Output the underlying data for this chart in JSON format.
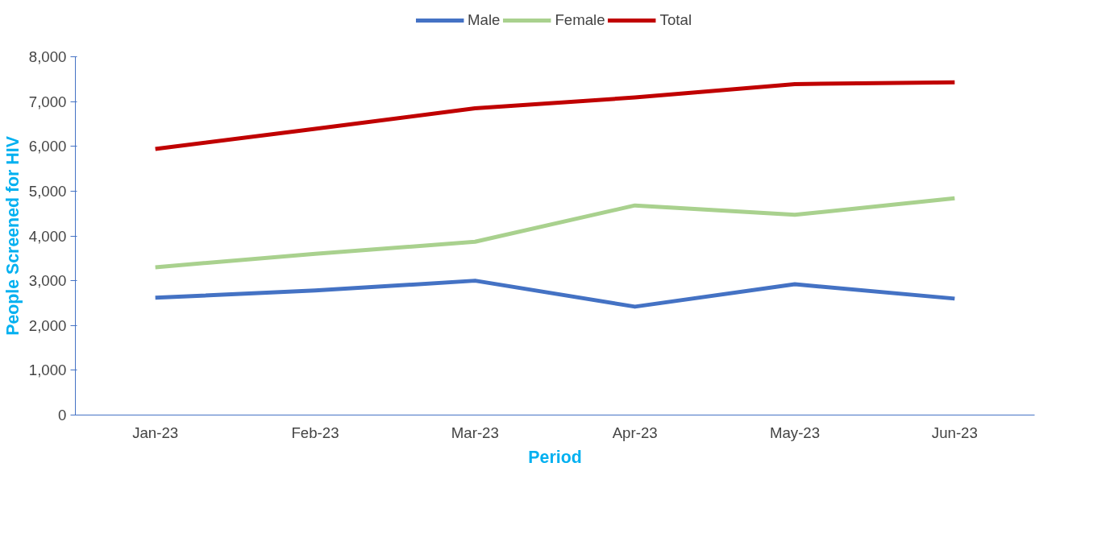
{
  "chart_data": {
    "type": "line",
    "xlabel": "Period",
    "ylabel": "People Screened for HIV",
    "categories": [
      "Jan-23",
      "Feb-23",
      "Mar-23",
      "Apr-23",
      "May-23",
      "Jun-23"
    ],
    "series": [
      {
        "name": "Male",
        "color": "#4472c4",
        "values": [
          2620,
          2780,
          3000,
          2420,
          2920,
          2600
        ]
      },
      {
        "name": "Female",
        "color": "#a9d18e",
        "values": [
          3300,
          3600,
          3870,
          4680,
          4470,
          4840
        ]
      },
      {
        "name": "Total",
        "color": "#c00000",
        "values": [
          5940,
          6390,
          6850,
          7090,
          7390,
          7430
        ]
      }
    ],
    "ylim": [
      0,
      8000
    ],
    "yticks": [
      {
        "value": 0,
        "label": "0"
      },
      {
        "value": 1000,
        "label": "1,000"
      },
      {
        "value": 2000,
        "label": "2,000"
      },
      {
        "value": 3000,
        "label": "3,000"
      },
      {
        "value": 4000,
        "label": "4,000"
      },
      {
        "value": 5000,
        "label": "5,000"
      },
      {
        "value": 6000,
        "label": "6,000"
      },
      {
        "value": 7000,
        "label": "7,000"
      },
      {
        "value": 8000,
        "label": "8,000"
      }
    ],
    "grid": false,
    "legend": "top",
    "marker": "none",
    "line_style": "solid"
  }
}
